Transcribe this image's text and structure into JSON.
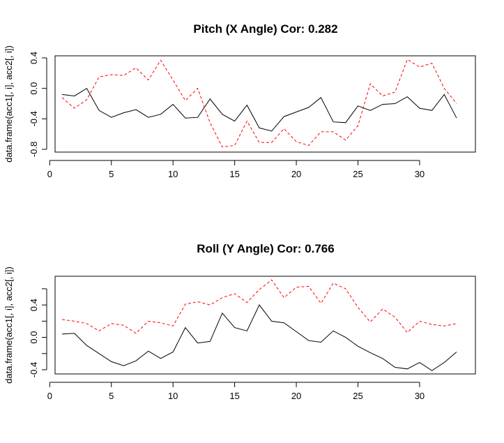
{
  "chart_data": [
    {
      "type": "line",
      "title": "Pitch (X Angle) Cor: 0.282",
      "xlabel": "",
      "ylabel": "data.frame(acc1[, i], acc2[, i])",
      "x": [
        1,
        2,
        3,
        4,
        5,
        6,
        7,
        8,
        9,
        10,
        11,
        12,
        13,
        14,
        15,
        16,
        17,
        18,
        19,
        20,
        21,
        22,
        23,
        24,
        25,
        26,
        27,
        28,
        29,
        30,
        31,
        32,
        33
      ],
      "xlim": [
        1,
        33
      ],
      "ylim": [
        -0.8,
        0.4
      ],
      "xticks": [
        0,
        5,
        10,
        15,
        20,
        25,
        30
      ],
      "yticks": [
        -0.8,
        -0.4,
        0.0,
        0.4
      ],
      "xtick_labels": [
        "0",
        "5",
        "10",
        "15",
        "20",
        "25",
        "30"
      ],
      "ytick_labels": [
        "-0.8",
        "-0.4",
        "0.0",
        "0.4"
      ],
      "grid": false,
      "series": [
        {
          "color": "#000000",
          "dash": "solid",
          "values": [
            -0.08,
            -0.1,
            0.0,
            -0.29,
            -0.38,
            -0.32,
            -0.28,
            -0.38,
            -0.34,
            -0.21,
            -0.39,
            -0.38,
            -0.14,
            -0.34,
            -0.43,
            -0.22,
            -0.52,
            -0.56,
            -0.37,
            -0.31,
            -0.25,
            -0.12,
            -0.44,
            -0.45,
            -0.23,
            -0.29,
            -0.21,
            -0.2,
            -0.11,
            -0.26,
            -0.29,
            -0.08,
            -0.39
          ]
        },
        {
          "color": "#ff0000",
          "dash": "dashed",
          "values": [
            -0.12,
            -0.26,
            -0.15,
            0.15,
            0.18,
            0.17,
            0.27,
            0.11,
            0.37,
            0.11,
            -0.16,
            0.0,
            -0.45,
            -0.77,
            -0.75,
            -0.43,
            -0.71,
            -0.71,
            -0.53,
            -0.7,
            -0.75,
            -0.57,
            -0.57,
            -0.68,
            -0.49,
            0.06,
            -0.1,
            -0.05,
            0.38,
            0.28,
            0.33,
            0.0,
            -0.2
          ]
        }
      ]
    },
    {
      "type": "line",
      "title": "Roll (Y Angle) Cor: 0.766",
      "xlabel": "",
      "ylabel": "data.frame(acc1[, i], acc2[, i])",
      "x": [
        1,
        2,
        3,
        4,
        5,
        6,
        7,
        8,
        9,
        10,
        11,
        12,
        13,
        14,
        15,
        16,
        17,
        18,
        19,
        20,
        21,
        22,
        23,
        24,
        25,
        26,
        27,
        28,
        29,
        30,
        31,
        32,
        33
      ],
      "xlim": [
        1,
        33
      ],
      "ylim": [
        -0.4,
        0.72
      ],
      "xticks": [
        0,
        5,
        10,
        15,
        20,
        25,
        30
      ],
      "yticks": [
        -0.4,
        -0.2,
        0.0,
        0.2,
        0.4,
        0.6
      ],
      "xtick_labels": [
        "0",
        "5",
        "10",
        "15",
        "20",
        "25",
        "30"
      ],
      "ytick_labels": [
        "-0.4",
        "",
        "0.0",
        "",
        "0.4",
        ""
      ],
      "grid": false,
      "series": [
        {
          "color": "#000000",
          "dash": "solid",
          "values": [
            0.04,
            0.05,
            -0.1,
            -0.2,
            -0.3,
            -0.35,
            -0.29,
            -0.17,
            -0.26,
            -0.18,
            0.12,
            -0.07,
            -0.05,
            0.3,
            0.12,
            0.08,
            0.4,
            0.2,
            0.18,
            0.07,
            -0.04,
            -0.06,
            0.08,
            0.0,
            -0.11,
            -0.19,
            -0.26,
            -0.37,
            -0.39,
            -0.31,
            -0.41,
            -0.31,
            -0.18
          ]
        },
        {
          "color": "#ff0000",
          "dash": "dashed",
          "values": [
            0.22,
            0.2,
            0.17,
            0.08,
            0.17,
            0.15,
            0.05,
            0.2,
            0.18,
            0.14,
            0.41,
            0.44,
            0.4,
            0.49,
            0.54,
            0.43,
            0.59,
            0.71,
            0.49,
            0.62,
            0.63,
            0.42,
            0.67,
            0.6,
            0.37,
            0.19,
            0.35,
            0.25,
            0.06,
            0.2,
            0.16,
            0.14,
            0.17
          ]
        }
      ]
    }
  ]
}
